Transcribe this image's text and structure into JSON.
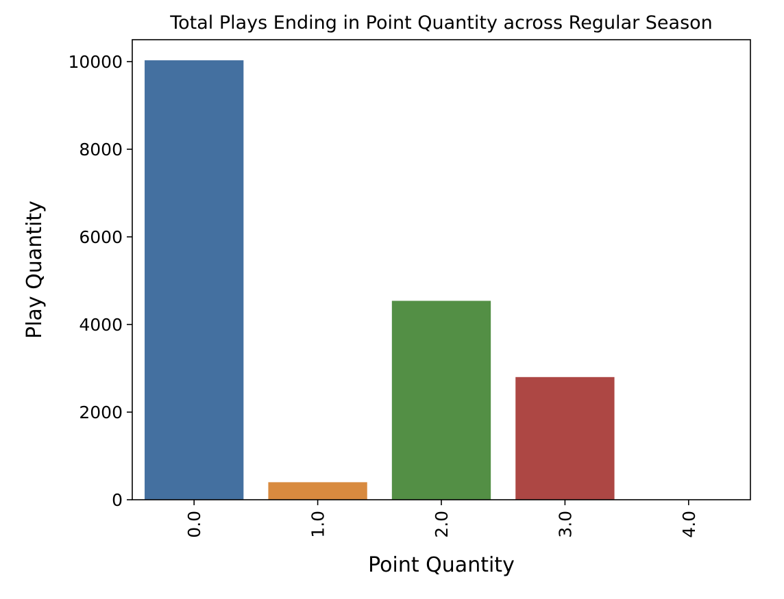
{
  "chart_data": {
    "type": "bar",
    "title": "Total Plays Ending in Point Quantity across Regular Season",
    "xlabel": "Point Quantity",
    "ylabel": "Play Quantity",
    "categories": [
      "0.0",
      "1.0",
      "2.0",
      "3.0",
      "4.0"
    ],
    "values": [
      10030,
      400,
      4540,
      2800,
      0
    ],
    "colors": [
      "#4470a0",
      "#d88a3f",
      "#538f45",
      "#ad4744",
      "#8a6cb0"
    ],
    "ylim": [
      0,
      10500
    ],
    "yticks": [
      0,
      2000,
      4000,
      6000,
      8000,
      10000
    ],
    "ytick_labels": [
      "0",
      "2000",
      "4000",
      "6000",
      "8000",
      "10000"
    ],
    "xtick_rotation": "vertical",
    "grid": false,
    "legend": "none"
  }
}
